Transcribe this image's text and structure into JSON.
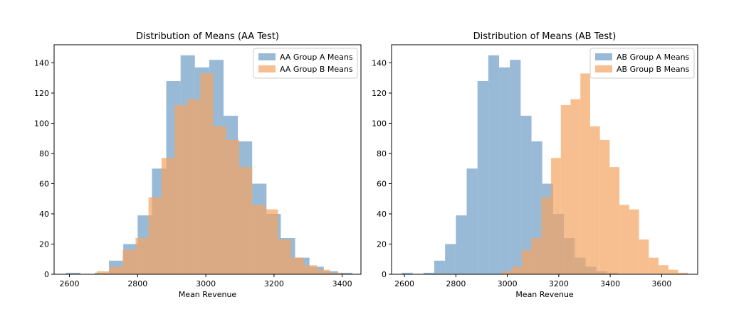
{
  "chart_data": [
    {
      "type": "bar",
      "subtype": "histogram",
      "title": "Distribution of Means (AA Test)",
      "xlabel": "Mean Revenue",
      "ylabel": "",
      "xlim": [
        2555,
        3455
      ],
      "ylim": [
        0,
        152
      ],
      "xticks": [
        2600,
        2800,
        3000,
        3200,
        3400
      ],
      "yticks": [
        0,
        20,
        40,
        60,
        80,
        100,
        120,
        140
      ],
      "legend": "top-right",
      "grid": false,
      "series": [
        {
          "name": "AA Group A Means",
          "color": "#4682b4",
          "alpha": 0.55,
          "bin_edges": [
            2590,
            2632,
            2674,
            2716,
            2758,
            2800,
            2842,
            2884,
            2926,
            2968,
            3010,
            3052,
            3094,
            3136,
            3178,
            3220,
            3262,
            3304,
            3346,
            3388,
            3430
          ],
          "counts": [
            1,
            0,
            1,
            9,
            20,
            39,
            70,
            128,
            145,
            137,
            142,
            105,
            88,
            60,
            40,
            24,
            11,
            5,
            2,
            1
          ]
        },
        {
          "name": "AA Group B Means",
          "color": "#f4a460",
          "alpha": 0.7,
          "bin_edges": [
            2680,
            2718,
            2756,
            2794,
            2832,
            2870,
            2908,
            2946,
            2984,
            3022,
            3060,
            3098,
            3136,
            3174,
            3212,
            3250,
            3288,
            3326,
            3364,
            3402
          ],
          "counts": [
            2,
            5,
            16,
            24,
            51,
            77,
            112,
            116,
            133,
            98,
            89,
            71,
            46,
            43,
            23,
            11,
            6,
            3,
            1
          ]
        }
      ]
    },
    {
      "type": "bar",
      "subtype": "histogram",
      "title": "Distribution of Means (AB Test)",
      "xlabel": "Mean Revenue",
      "ylabel": "",
      "xlim": [
        2550,
        3740
      ],
      "ylim": [
        0,
        152
      ],
      "xticks": [
        2600,
        2800,
        3000,
        3200,
        3400,
        3600
      ],
      "yticks": [
        0,
        20,
        40,
        60,
        80,
        100,
        120,
        140
      ],
      "legend": "top-right",
      "grid": false,
      "series": [
        {
          "name": "AB Group A Means",
          "color": "#4682b4",
          "alpha": 0.55,
          "bin_edges": [
            2590,
            2632,
            2674,
            2716,
            2758,
            2800,
            2842,
            2884,
            2926,
            2968,
            3010,
            3052,
            3094,
            3136,
            3178,
            3220,
            3262,
            3304,
            3346,
            3388,
            3430
          ],
          "counts": [
            1,
            0,
            1,
            9,
            20,
            39,
            70,
            128,
            145,
            137,
            142,
            105,
            88,
            60,
            40,
            24,
            11,
            5,
            2,
            1
          ]
        },
        {
          "name": "AB Group B Means",
          "color": "#f4a460",
          "alpha": 0.7,
          "bin_edges": [
            2980,
            3018,
            3056,
            3094,
            3132,
            3170,
            3208,
            3246,
            3284,
            3322,
            3360,
            3398,
            3436,
            3474,
            3512,
            3550,
            3588,
            3626,
            3664,
            3702
          ],
          "counts": [
            2,
            5,
            16,
            24,
            51,
            77,
            112,
            116,
            133,
            98,
            89,
            71,
            46,
            43,
            23,
            11,
            6,
            3,
            1
          ]
        }
      ]
    }
  ]
}
